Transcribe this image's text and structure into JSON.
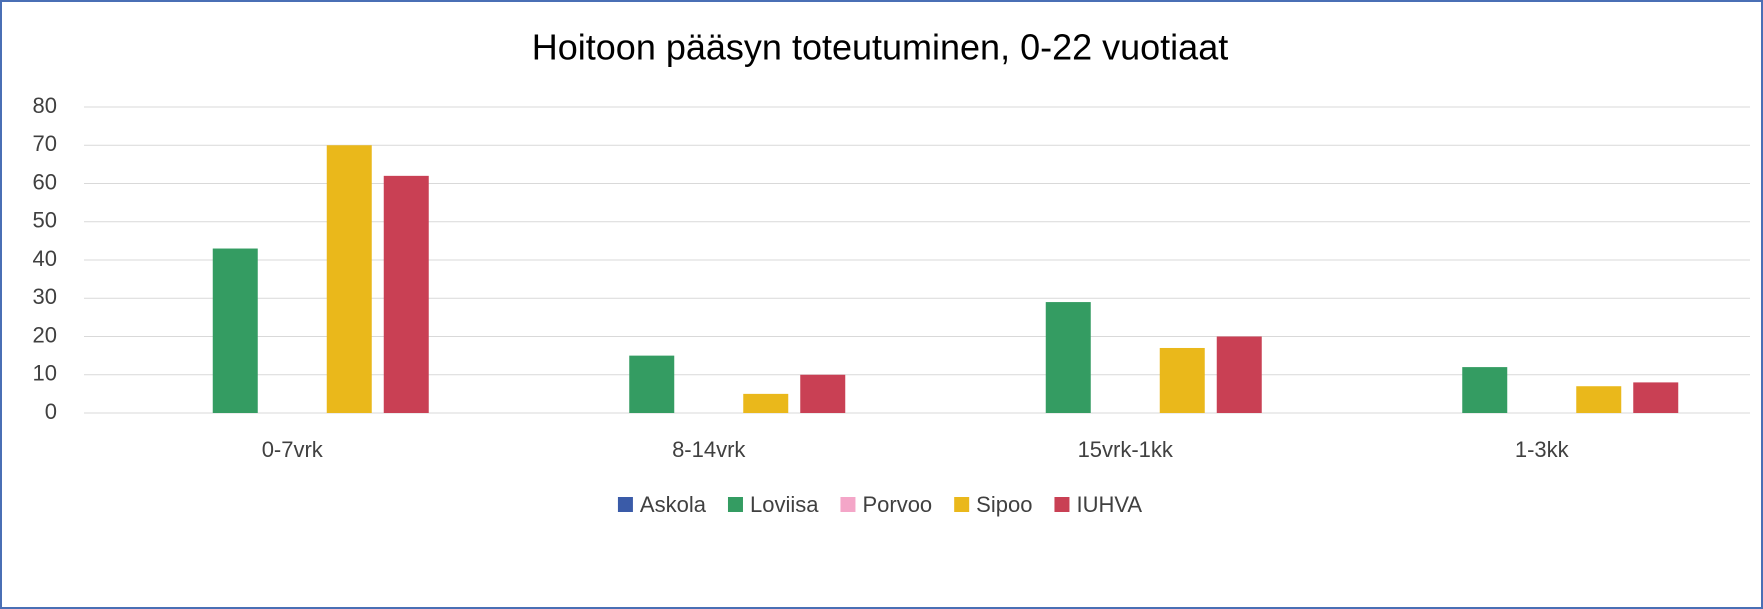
{
  "chart_data": {
    "type": "bar",
    "title": "Hoitoon pääsyn toteutuminen, 0-22 vuotiaat",
    "categories": [
      "0-7vrk",
      "8-14vrk",
      "15vrk-1kk",
      "1-3kk"
    ],
    "series": [
      {
        "name": "Askola",
        "color": "#3a5ba8",
        "values": [
          0,
          0,
          0,
          0
        ]
      },
      {
        "name": "Loviisa",
        "color": "#349c62",
        "values": [
          43,
          15,
          29,
          12
        ]
      },
      {
        "name": "Porvoo",
        "color": "#f4a6c8",
        "values": [
          0,
          0,
          0,
          0
        ]
      },
      {
        "name": "Sipoo",
        "color": "#eab81b",
        "values": [
          70,
          5,
          17,
          7
        ]
      },
      {
        "name": "IUHVA",
        "color": "#c94054",
        "values": [
          62,
          10,
          20,
          8
        ]
      }
    ],
    "ylim": [
      0,
      80
    ],
    "yticks": [
      0,
      10,
      20,
      30,
      40,
      50,
      60,
      70,
      80
    ],
    "grid": true,
    "legend": "bottom"
  }
}
